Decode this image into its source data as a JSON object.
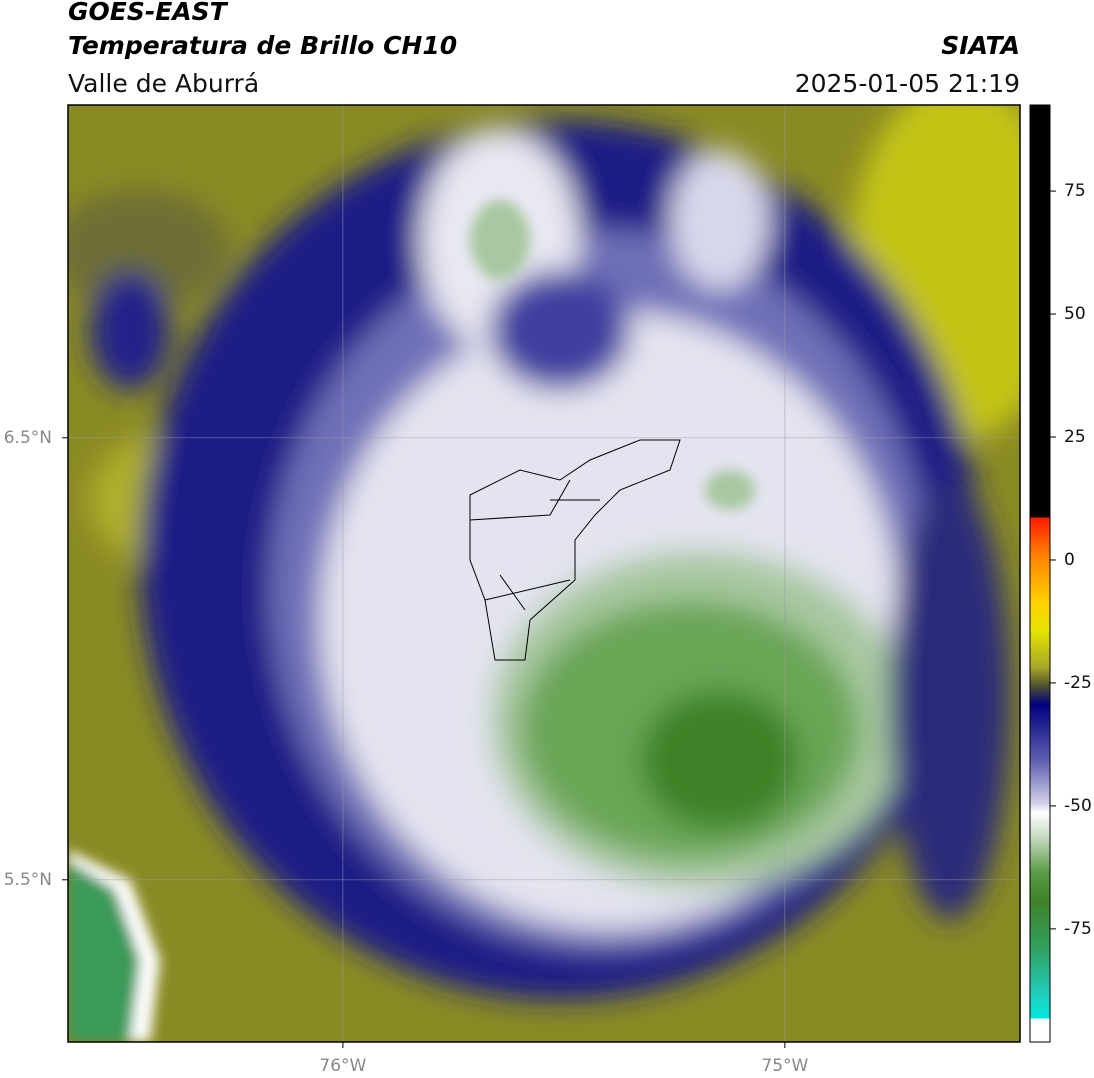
{
  "header": {
    "title": "GOES-EAST",
    "subtitle": "Temperatura de Brillo CH10",
    "region": "Valle de Aburrá",
    "source": "SIATA",
    "datetime": "2025-01-05 21:19"
  },
  "map": {
    "xlim": [
      -76.622,
      -74.468
    ],
    "ylim": [
      5.133,
      7.253
    ],
    "xticks": [
      {
        "value": -76,
        "label": "76°W"
      },
      {
        "value": -75,
        "label": "75°W"
      }
    ],
    "yticks": [
      {
        "value": 5.5,
        "label": "5.5°N"
      },
      {
        "value": 6.5,
        "label": "6.5°N"
      }
    ],
    "grid": true
  },
  "colorbar": {
    "lim": [
      -98,
      92.5
    ],
    "ticks": [
      -75,
      -50,
      -25,
      0,
      25,
      50,
      75
    ]
  }
}
